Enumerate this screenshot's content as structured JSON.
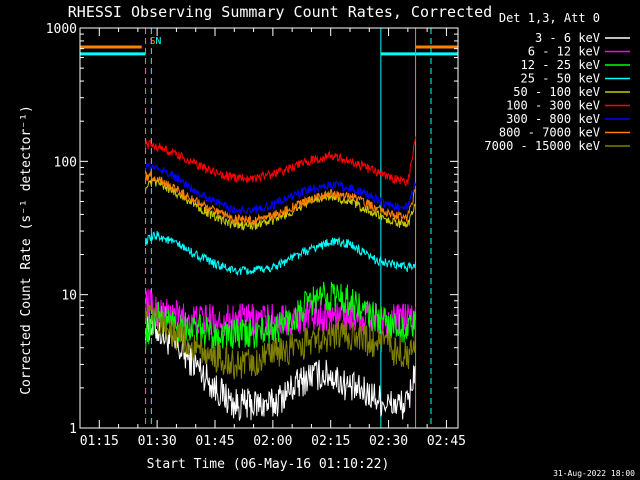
{
  "chart_data": {
    "type": "line",
    "title": "RHESSI Observing Summary Count Rates, Corrected",
    "ylabel": "Corrected Count Rate (s⁻¹ detector⁻¹)",
    "xlabel": "Start Time (06-May-16 01:10:22)",
    "timestamp": "31-Aug-2022 18:00",
    "legend_title": "Det 1,3, Att 0",
    "legend_position": "top-right",
    "y_scale": "log",
    "ylim": [
      1,
      1000
    ],
    "y_ticks": [
      {
        "value": 1,
        "label": "1"
      },
      {
        "value": 10,
        "label": "10"
      },
      {
        "value": 100,
        "label": "100"
      },
      {
        "value": 1000,
        "label": "1000"
      }
    ],
    "xlim": [
      "01:10",
      "02:48"
    ],
    "x_ticks": [
      "01:15",
      "01:30",
      "01:45",
      "02:00",
      "02:15",
      "02:30",
      "02:45"
    ],
    "data_start": "01:27",
    "data_end": "02:38",
    "markers": [
      {
        "time": "01:27",
        "label": "S",
        "color": "#ff8000",
        "style": "dashed"
      },
      {
        "time": "01:28:30",
        "label": "N",
        "color": "#00ffff",
        "style": "dashed"
      },
      {
        "time": "02:28",
        "label": "",
        "color": "#00ffff",
        "style": "solid"
      },
      {
        "time": "02:37",
        "label": "",
        "color": "#ff8000",
        "style": "solid"
      },
      {
        "time": "02:41",
        "label": "",
        "color": "#00ffff",
        "style": "dashed"
      }
    ],
    "flag_bars": [
      {
        "color": "#ff8000",
        "value": 720,
        "spans": [
          [
            "01:10",
            "01:26"
          ],
          [
            "02:37",
            "02:48"
          ]
        ]
      },
      {
        "color": "#00ffff",
        "value": 640,
        "spans": [
          [
            "01:10",
            "01:27"
          ],
          [
            "02:28",
            "02:48"
          ]
        ]
      }
    ],
    "times": [
      "01:27",
      "01:30",
      "01:35",
      "01:40",
      "01:45",
      "01:50",
      "01:55",
      "02:00",
      "02:05",
      "02:10",
      "02:15",
      "02:20",
      "02:25",
      "02:30",
      "02:35",
      "02:37"
    ],
    "series": [
      {
        "name": "3 - 6 keV",
        "color": "#ffffff",
        "values": [
          6,
          5.5,
          4,
          3,
          2,
          1.5,
          1.5,
          1.5,
          2,
          2.5,
          2.5,
          2,
          1.8,
          1.5,
          1.5,
          3
        ]
      },
      {
        "name": "6 - 12 keV",
        "color": "#ff00ff",
        "values": [
          9,
          7.5,
          7,
          6.5,
          6.5,
          6.5,
          6.5,
          6.5,
          6.5,
          7,
          7,
          7,
          6.8,
          6.5,
          6.5,
          6.5
        ]
      },
      {
        "name": "12 - 25 keV",
        "color": "#00ff00",
        "values": [
          5,
          7,
          6,
          5.5,
          5,
          5,
          5,
          5.5,
          6.5,
          9,
          10,
          9,
          7,
          6,
          5.5,
          6
        ]
      },
      {
        "name": "25 - 50 keV",
        "color": "#00ffff",
        "values": [
          25,
          28,
          24,
          20,
          17,
          15,
          15,
          16,
          19,
          22,
          25,
          24,
          19,
          17,
          16,
          17
        ]
      },
      {
        "name": "50 - 100 keV",
        "color": "#c8c800",
        "values": [
          65,
          70,
          58,
          47,
          38,
          33,
          33,
          36,
          42,
          52,
          55,
          50,
          42,
          36,
          33,
          50
        ]
      },
      {
        "name": "100 - 300 keV",
        "color": "#ff0000",
        "values": [
          135,
          130,
          112,
          95,
          82,
          75,
          75,
          80,
          90,
          102,
          110,
          100,
          88,
          76,
          70,
          150
        ]
      },
      {
        "name": "300 - 800 keV",
        "color": "#0000ff",
        "values": [
          92,
          90,
          75,
          60,
          50,
          43,
          43,
          47,
          55,
          62,
          67,
          63,
          55,
          47,
          45,
          70
        ]
      },
      {
        "name": "800 - 7000 keV",
        "color": "#ff8000",
        "values": [
          78,
          75,
          62,
          50,
          42,
          37,
          36,
          39,
          45,
          52,
          57,
          55,
          47,
          40,
          38,
          60
        ]
      },
      {
        "name": "7000 - 15000 keV",
        "color": "#808000",
        "values": [
          8,
          6,
          5,
          4,
          3.5,
          3,
          3,
          3.5,
          4,
          4.5,
          5,
          5,
          4.5,
          4,
          3.5,
          5
        ]
      }
    ]
  }
}
